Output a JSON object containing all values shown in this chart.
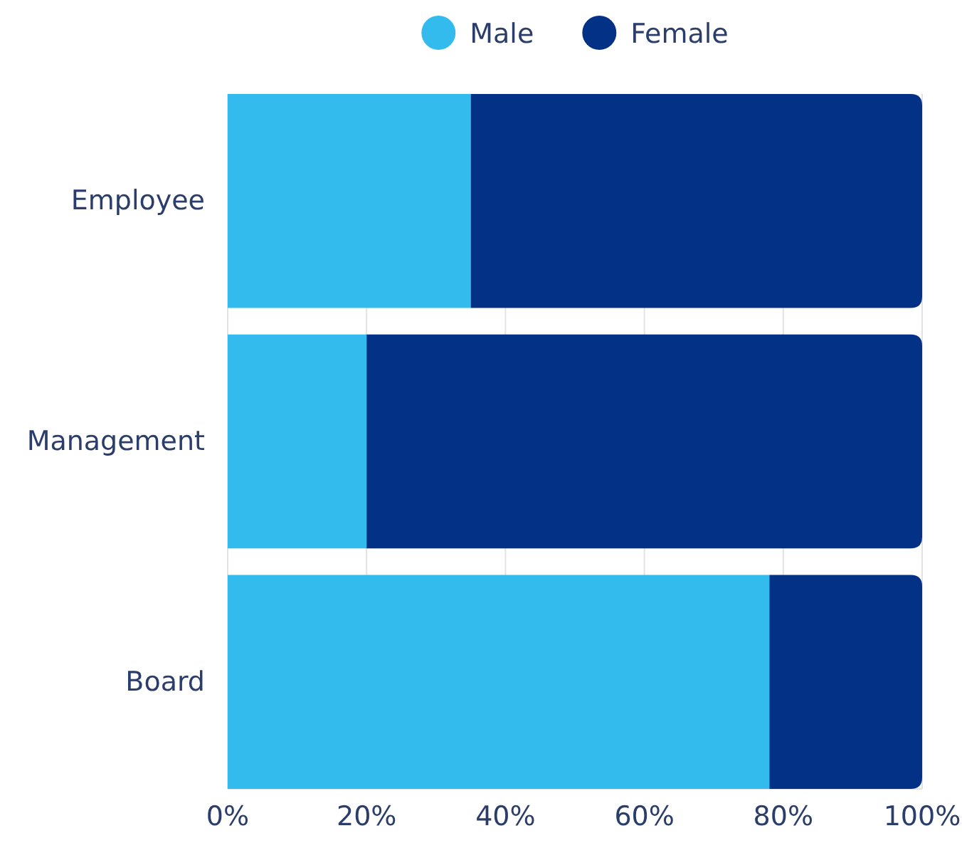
{
  "chart_data": {
    "type": "bar",
    "orientation": "horizontal",
    "stacked": true,
    "categories": [
      "Employee",
      "Management",
      "Board"
    ],
    "series": [
      {
        "name": "Male",
        "color": "#33bbee",
        "values": [
          35,
          20,
          78
        ]
      },
      {
        "name": "Female",
        "color": "#023185",
        "values": [
          65,
          80,
          22
        ]
      }
    ],
    "xlim": [
      0,
      100
    ],
    "xticks": [
      {
        "value": 0,
        "label": "0%"
      },
      {
        "value": 20,
        "label": "20%"
      },
      {
        "value": 40,
        "label": "40%"
      },
      {
        "value": 60,
        "label": "60%"
      },
      {
        "value": 80,
        "label": "80%"
      },
      {
        "value": 100,
        "label": "100%"
      }
    ],
    "grid": "x",
    "legend": "top"
  }
}
